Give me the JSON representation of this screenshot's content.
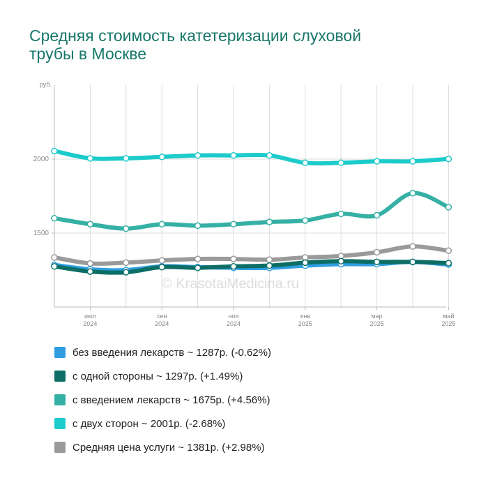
{
  "title": {
    "line1": "Средняя стоимость катетеризации слуховой",
    "line2": "трубы в Москве"
  },
  "watermark": "© KrasotaiMedicina.ru",
  "chart_data": {
    "type": "line",
    "ylabel": "руб.",
    "ylim": [
      1000,
      2500
    ],
    "yticks": [
      1500,
      2000
    ],
    "grid": true,
    "legend_position": "bottom",
    "x": [
      "2024-06",
      "2024-07",
      "2024-08",
      "2024-09",
      "2024-10",
      "2024-11",
      "2024-12",
      "2025-01",
      "2025-02",
      "2025-03",
      "2025-04",
      "2025-05"
    ],
    "xticks": [
      {
        "index": 1,
        "month": "июл",
        "year": "2024"
      },
      {
        "index": 3,
        "month": "сен",
        "year": "2024"
      },
      {
        "index": 5,
        "month": "ноя",
        "year": "2024"
      },
      {
        "index": 7,
        "month": "янв",
        "year": "2025"
      },
      {
        "index": 9,
        "month": "мар",
        "year": "2025"
      },
      {
        "index": 11,
        "month": "май",
        "year": "2025"
      }
    ],
    "series": [
      {
        "name": "без введения лекарств",
        "color": "#2f9ee0",
        "values": [
          1285,
          1255,
          1250,
          1275,
          1270,
          1265,
          1265,
          1280,
          1290,
          1290,
          1305,
          1287
        ],
        "legend_text": "без введения лекарств ~ 1287р. (-0.62%)"
      },
      {
        "name": "с одной стороны",
        "color": "#0d6e66",
        "values": [
          1275,
          1240,
          1235,
          1270,
          1265,
          1275,
          1280,
          1300,
          1310,
          1305,
          1305,
          1297
        ],
        "legend_text": "с одной стороны ~ 1297р. (+1.49%)"
      },
      {
        "name": "с введением лекарств",
        "color": "#35b0a4",
        "values": [
          1600,
          1560,
          1530,
          1560,
          1550,
          1560,
          1575,
          1585,
          1630,
          1620,
          1770,
          1675
        ],
        "legend_text": "с введением лекарств ~ 1675р. (+4.56%)"
      },
      {
        "name": "с двух сторон",
        "color": "#1ccbca",
        "values": [
          2055,
          2005,
          2005,
          2015,
          2025,
          2025,
          2025,
          1975,
          1975,
          1985,
          1985,
          2001
        ],
        "legend_text": "с двух сторон ~ 2001р. (-2.68%)"
      },
      {
        "name": "Средняя цена услуги",
        "color": "#9a9a9a",
        "values": [
          1335,
          1295,
          1300,
          1315,
          1325,
          1325,
          1320,
          1335,
          1345,
          1370,
          1410,
          1381
        ],
        "legend_text": "Средняя цена услуги ~ 1381р. (+2.98%)"
      }
    ]
  }
}
